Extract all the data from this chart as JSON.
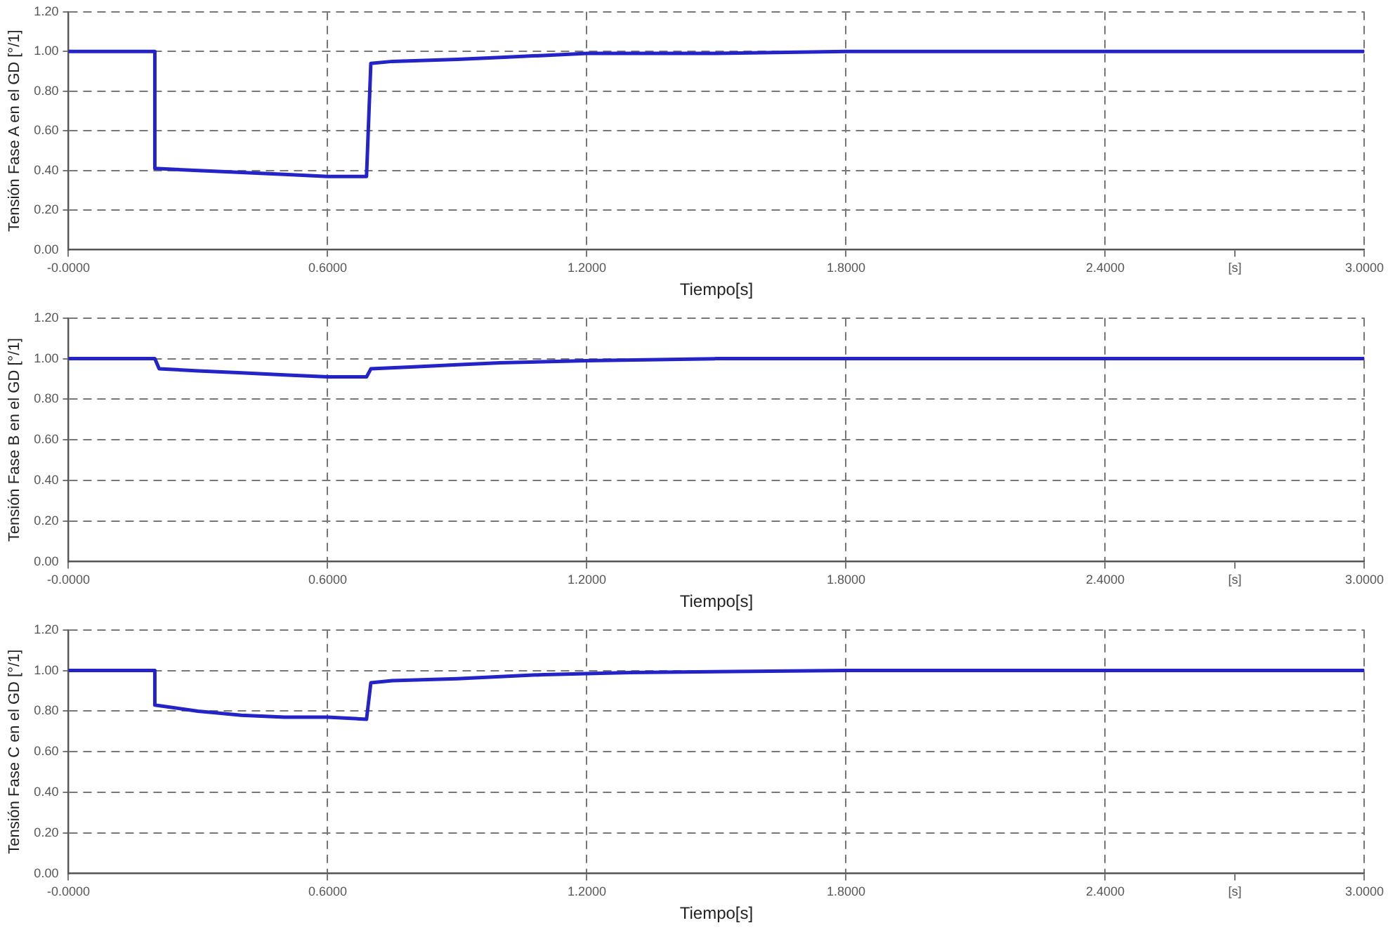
{
  "chart_data": [
    {
      "type": "line",
      "xlabel": "Tiempo[s]",
      "ylabel": "Tensión Fase A en el GD [°/1]",
      "x": [
        0,
        0.2,
        0.2,
        0.3,
        0.4,
        0.5,
        0.6,
        0.69,
        0.7,
        0.75,
        0.9,
        1.0,
        1.1,
        1.2,
        1.5,
        1.8,
        3.0
      ],
      "series": [
        {
          "color": "#2323c8",
          "values": [
            1.0,
            1.0,
            0.41,
            0.4,
            0.39,
            0.38,
            0.37,
            0.37,
            0.94,
            0.95,
            0.96,
            0.97,
            0.98,
            0.99,
            0.99,
            1.0,
            1.0
          ]
        }
      ],
      "xlim": [
        0,
        3.0
      ],
      "xticks": [
        {
          "value": 0,
          "label": "-0.0000"
        },
        {
          "value": 0.6,
          "label": "0.6000"
        },
        {
          "value": 1.2,
          "label": "1.2000"
        },
        {
          "value": 1.8,
          "label": "1.8000"
        },
        {
          "value": 2.4,
          "label": "2.4000"
        },
        {
          "value": 2.7,
          "label": "[s]"
        },
        {
          "value": 3.0,
          "label": "3.0000"
        }
      ],
      "ylim": [
        0,
        1.2
      ],
      "yticks": [
        {
          "value": 0,
          "label": "0.00"
        },
        {
          "value": 0.2,
          "label": "0.20"
        },
        {
          "value": 0.4,
          "label": "0.40"
        },
        {
          "value": 0.6,
          "label": "0.60"
        },
        {
          "value": 0.8,
          "label": "0.80"
        },
        {
          "value": 1.0,
          "label": "1.00"
        },
        {
          "value": 1.2,
          "label": "1.20"
        }
      ],
      "grid": true,
      "legend": false,
      "line_style": "solid",
      "marker": "none"
    },
    {
      "type": "line",
      "xlabel": "Tiempo[s]",
      "ylabel": "Tensión Fase B en el GD [°/1]",
      "x": [
        0,
        0.2,
        0.21,
        0.3,
        0.4,
        0.5,
        0.6,
        0.69,
        0.7,
        0.8,
        0.9,
        1.0,
        1.2,
        1.5,
        3.0
      ],
      "series": [
        {
          "color": "#2323c8",
          "values": [
            1.0,
            1.0,
            0.95,
            0.94,
            0.93,
            0.92,
            0.91,
            0.91,
            0.95,
            0.96,
            0.97,
            0.98,
            0.99,
            1.0,
            1.0
          ]
        }
      ],
      "xlim": [
        0,
        3.0
      ],
      "xticks": [
        {
          "value": 0,
          "label": "-0.0000"
        },
        {
          "value": 0.6,
          "label": "0.6000"
        },
        {
          "value": 1.2,
          "label": "1.2000"
        },
        {
          "value": 1.8,
          "label": "1.8000"
        },
        {
          "value": 2.4,
          "label": "2.4000"
        },
        {
          "value": 2.7,
          "label": "[s]"
        },
        {
          "value": 3.0,
          "label": "3.0000"
        }
      ],
      "ylim": [
        0,
        1.2
      ],
      "yticks": [
        {
          "value": 0,
          "label": "0.00"
        },
        {
          "value": 0.2,
          "label": "0.20"
        },
        {
          "value": 0.4,
          "label": "0.40"
        },
        {
          "value": 0.6,
          "label": "0.60"
        },
        {
          "value": 0.8,
          "label": "0.80"
        },
        {
          "value": 1.0,
          "label": "1.00"
        },
        {
          "value": 1.2,
          "label": "1.20"
        }
      ],
      "grid": true,
      "legend": false,
      "line_style": "solid",
      "marker": "none"
    },
    {
      "type": "line",
      "xlabel": "Tiempo[s]",
      "ylabel": "Tensión Fase C en el GD [°/1]",
      "x": [
        0,
        0.2,
        0.2,
        0.3,
        0.4,
        0.5,
        0.6,
        0.69,
        0.7,
        0.75,
        0.9,
        1.0,
        1.1,
        1.3,
        1.8,
        3.0
      ],
      "series": [
        {
          "color": "#2323c8",
          "values": [
            1.0,
            1.0,
            0.83,
            0.8,
            0.78,
            0.77,
            0.77,
            0.76,
            0.94,
            0.95,
            0.96,
            0.97,
            0.98,
            0.99,
            1.0,
            1.0
          ]
        }
      ],
      "xlim": [
        0,
        3.0
      ],
      "xticks": [
        {
          "value": 0,
          "label": "-0.0000"
        },
        {
          "value": 0.6,
          "label": "0.6000"
        },
        {
          "value": 1.2,
          "label": "1.2000"
        },
        {
          "value": 1.8,
          "label": "1.8000"
        },
        {
          "value": 2.4,
          "label": "2.4000"
        },
        {
          "value": 2.7,
          "label": "[s]"
        },
        {
          "value": 3.0,
          "label": "3.0000"
        }
      ],
      "ylim": [
        0,
        1.2
      ],
      "yticks": [
        {
          "value": 0,
          "label": "0.00"
        },
        {
          "value": 0.2,
          "label": "0.20"
        },
        {
          "value": 0.4,
          "label": "0.40"
        },
        {
          "value": 0.6,
          "label": "0.60"
        },
        {
          "value": 0.8,
          "label": "0.80"
        },
        {
          "value": 1.0,
          "label": "1.00"
        },
        {
          "value": 1.2,
          "label": "1.20"
        }
      ],
      "grid": true,
      "legend": false,
      "line_style": "solid",
      "marker": "none"
    }
  ]
}
